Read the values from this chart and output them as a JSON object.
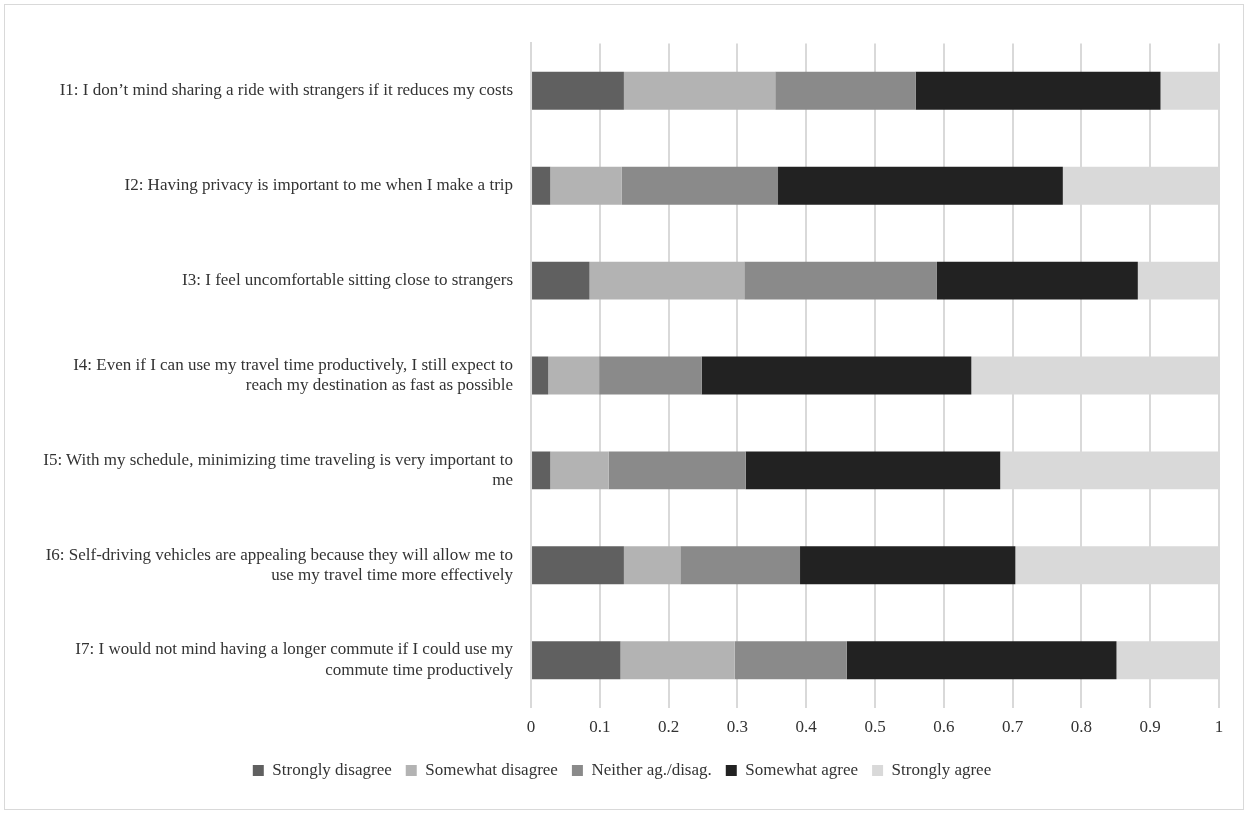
{
  "chart_data": {
    "type": "bar",
    "orientation": "horizontal",
    "stacked": true,
    "categories": [
      "I1: I don’t mind sharing a ride with strangers if it reduces my costs",
      "I2: Having privacy is important to me when I make a trip",
      "I3: I feel uncomfortable sitting close to strangers",
      "I4: Even if I can use my travel time productively, I still expect to reach my destination as fast as possible",
      "I5: With my schedule, minimizing time traveling is very important to me",
      "I6: Self-driving vehicles are appealing because they will allow me to use my travel time more effectively",
      "I7: I would not mind having a longer commute if I could use my commute time productively"
    ],
    "series": [
      {
        "name": "Strongly disagree",
        "color": "#606060",
        "values": [
          0.135,
          0.028,
          0.085,
          0.025,
          0.028,
          0.135,
          0.13
        ]
      },
      {
        "name": "Somewhat disagree",
        "color": "#b3b3b3",
        "values": [
          0.22,
          0.104,
          0.225,
          0.074,
          0.085,
          0.082,
          0.166
        ]
      },
      {
        "name": "Neither ag./disag.",
        "color": "#8a8a8a",
        "values": [
          0.204,
          0.227,
          0.28,
          0.149,
          0.199,
          0.174,
          0.163
        ]
      },
      {
        "name": "Somewhat agree",
        "color": "#222222",
        "values": [
          0.356,
          0.414,
          0.292,
          0.392,
          0.37,
          0.313,
          0.392
        ]
      },
      {
        "name": "Strongly agree",
        "color": "#d9d9d9",
        "values": [
          0.085,
          0.227,
          0.118,
          0.36,
          0.318,
          0.296,
          0.149
        ]
      }
    ],
    "xlim": [
      0,
      1
    ],
    "xticks": [
      0,
      0.1,
      0.2,
      0.3,
      0.4,
      0.5,
      0.6,
      0.7,
      0.8,
      0.9,
      1
    ],
    "grid": "x",
    "legend": "bottom"
  }
}
